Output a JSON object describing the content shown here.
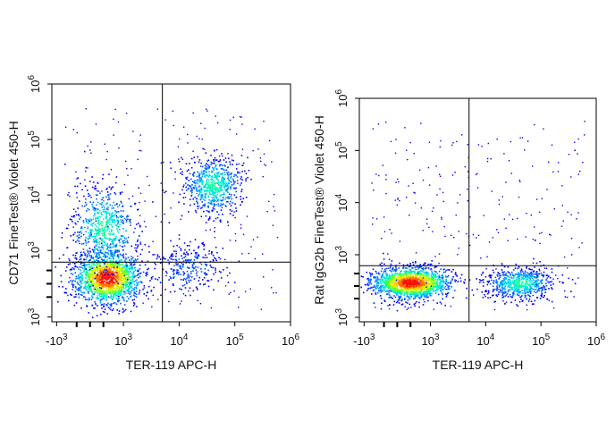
{
  "chart_data": [
    {
      "type": "scatter",
      "subtype": "flow-cytometry-density-dot-plot",
      "xlabel": "TER-119 APC-H",
      "ylabel": "CD71 FineTest® Violet 450-H",
      "x_scale": "biexponential",
      "y_scale": "biexponential",
      "x_ticks": [
        {
          "label": "-10",
          "sup": "3",
          "value": -1000
        },
        {
          "label": "10",
          "sup": "3",
          "value": 1000
        },
        {
          "label": "10",
          "sup": "4",
          "value": 10000
        },
        {
          "label": "10",
          "sup": "5",
          "value": 100000
        },
        {
          "label": "10",
          "sup": "6",
          "value": 1000000
        }
      ],
      "y_ticks": [
        {
          "label": "10",
          "sup": "3",
          "value": -1000,
          "negative": true
        },
        {
          "label": "10",
          "sup": "3",
          "value": 1000
        },
        {
          "label": "10",
          "sup": "4",
          "value": 10000
        },
        {
          "label": "10",
          "sup": "5",
          "value": 100000
        },
        {
          "label": "10",
          "sup": "6",
          "value": 1000000
        }
      ],
      "gate_x": 5000,
      "gate_y": 650,
      "populations": [
        {
          "name": "main",
          "x_center": 500,
          "y_center": 200,
          "density": "high"
        },
        {
          "name": "upper-left",
          "x_center": 400,
          "y_center": 2500,
          "density": "medium"
        },
        {
          "name": "upper-right",
          "x_center": 40000,
          "y_center": 15000,
          "density": "medium"
        },
        {
          "name": "lower-right",
          "x_center": 15000,
          "y_center": 500,
          "density": "low"
        }
      ],
      "colormap": [
        "#0000ff",
        "#00a0ff",
        "#00ffc8",
        "#80ff00",
        "#ffd000",
        "#ff2000"
      ]
    },
    {
      "type": "scatter",
      "subtype": "flow-cytometry-density-dot-plot",
      "xlabel": "TER-119 APC-H",
      "ylabel": "Rat IgG2b FineTest® Violet 450-H",
      "x_scale": "biexponential",
      "y_scale": "biexponential",
      "x_ticks": [
        {
          "label": "-10",
          "sup": "3",
          "value": -1000
        },
        {
          "label": "10",
          "sup": "3",
          "value": 1000
        },
        {
          "label": "10",
          "sup": "4",
          "value": 10000
        },
        {
          "label": "10",
          "sup": "5",
          "value": 100000
        },
        {
          "label": "10",
          "sup": "6",
          "value": 1000000
        }
      ],
      "y_ticks": [
        {
          "label": "10",
          "sup": "3",
          "value": -1000,
          "negative": true
        },
        {
          "label": "10",
          "sup": "3",
          "value": 1000
        },
        {
          "label": "10",
          "sup": "4",
          "value": 10000
        },
        {
          "label": "10",
          "sup": "5",
          "value": 100000
        },
        {
          "label": "10",
          "sup": "6",
          "value": 1000000
        }
      ],
      "gate_x": 5000,
      "gate_y": 650,
      "populations": [
        {
          "name": "main",
          "x_center": 400,
          "y_center": 120,
          "density": "high"
        },
        {
          "name": "lower-right",
          "x_center": 40000,
          "y_center": 100,
          "density": "medium"
        }
      ],
      "colormap": [
        "#0000ff",
        "#00a0ff",
        "#00ffc8",
        "#80ff00",
        "#ffd000",
        "#ff2000"
      ]
    }
  ]
}
